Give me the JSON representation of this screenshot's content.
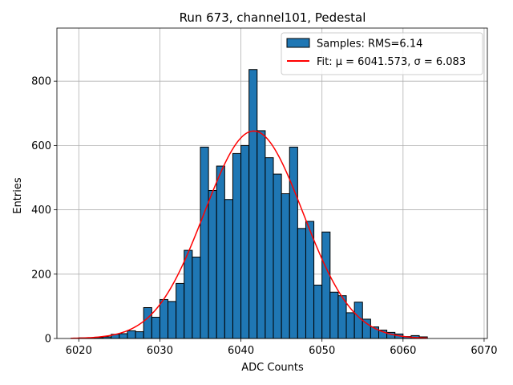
{
  "chart_data": {
    "type": "bar",
    "title": "Run 673, channel101, Pedestal",
    "xlabel": "ADC Counts",
    "ylabel": "Entries",
    "xlim": [
      6017.3,
      6070.4
    ],
    "ylim": [
      0,
      965
    ],
    "xticks": [
      6020,
      6030,
      6040,
      6050,
      6060,
      6070
    ],
    "yticks": [
      0,
      200,
      400,
      600,
      800
    ],
    "grid": true,
    "legend_position": "top-right",
    "bar_color": "#1f77b4",
    "fit_color": "#ff0000",
    "series": [
      {
        "name": "Samples: RMS=6.14",
        "bin_width": 1,
        "bin_left_edges": [
          6020,
          6021,
          6022,
          6023,
          6024,
          6025,
          6026,
          6027,
          6028,
          6029,
          6030,
          6031,
          6032,
          6033,
          6034,
          6035,
          6036,
          6037,
          6038,
          6039,
          6040,
          6041,
          6042,
          6043,
          6044,
          6045,
          6046,
          6047,
          6048,
          6049,
          6050,
          6051,
          6052,
          6053,
          6054,
          6055,
          6056,
          6057,
          6058,
          6059,
          6060,
          6061,
          6062
        ],
        "values": [
          2,
          2,
          3,
          5,
          13,
          15,
          24,
          21,
          96,
          66,
          121,
          115,
          171,
          274,
          253,
          595,
          460,
          536,
          432,
          575,
          600,
          836,
          646,
          562,
          511,
          450,
          595,
          342,
          364,
          166,
          331,
          144,
          133,
          80,
          113,
          60,
          36,
          26,
          19,
          14,
          6,
          9,
          5
        ]
      },
      {
        "name": "Fit: μ = 6041.573, σ = 6.083",
        "type": "line",
        "mu": 6041.573,
        "sigma": 6.083,
        "amplitude": 645,
        "x_range": [
          6019,
          6063
        ]
      }
    ]
  }
}
